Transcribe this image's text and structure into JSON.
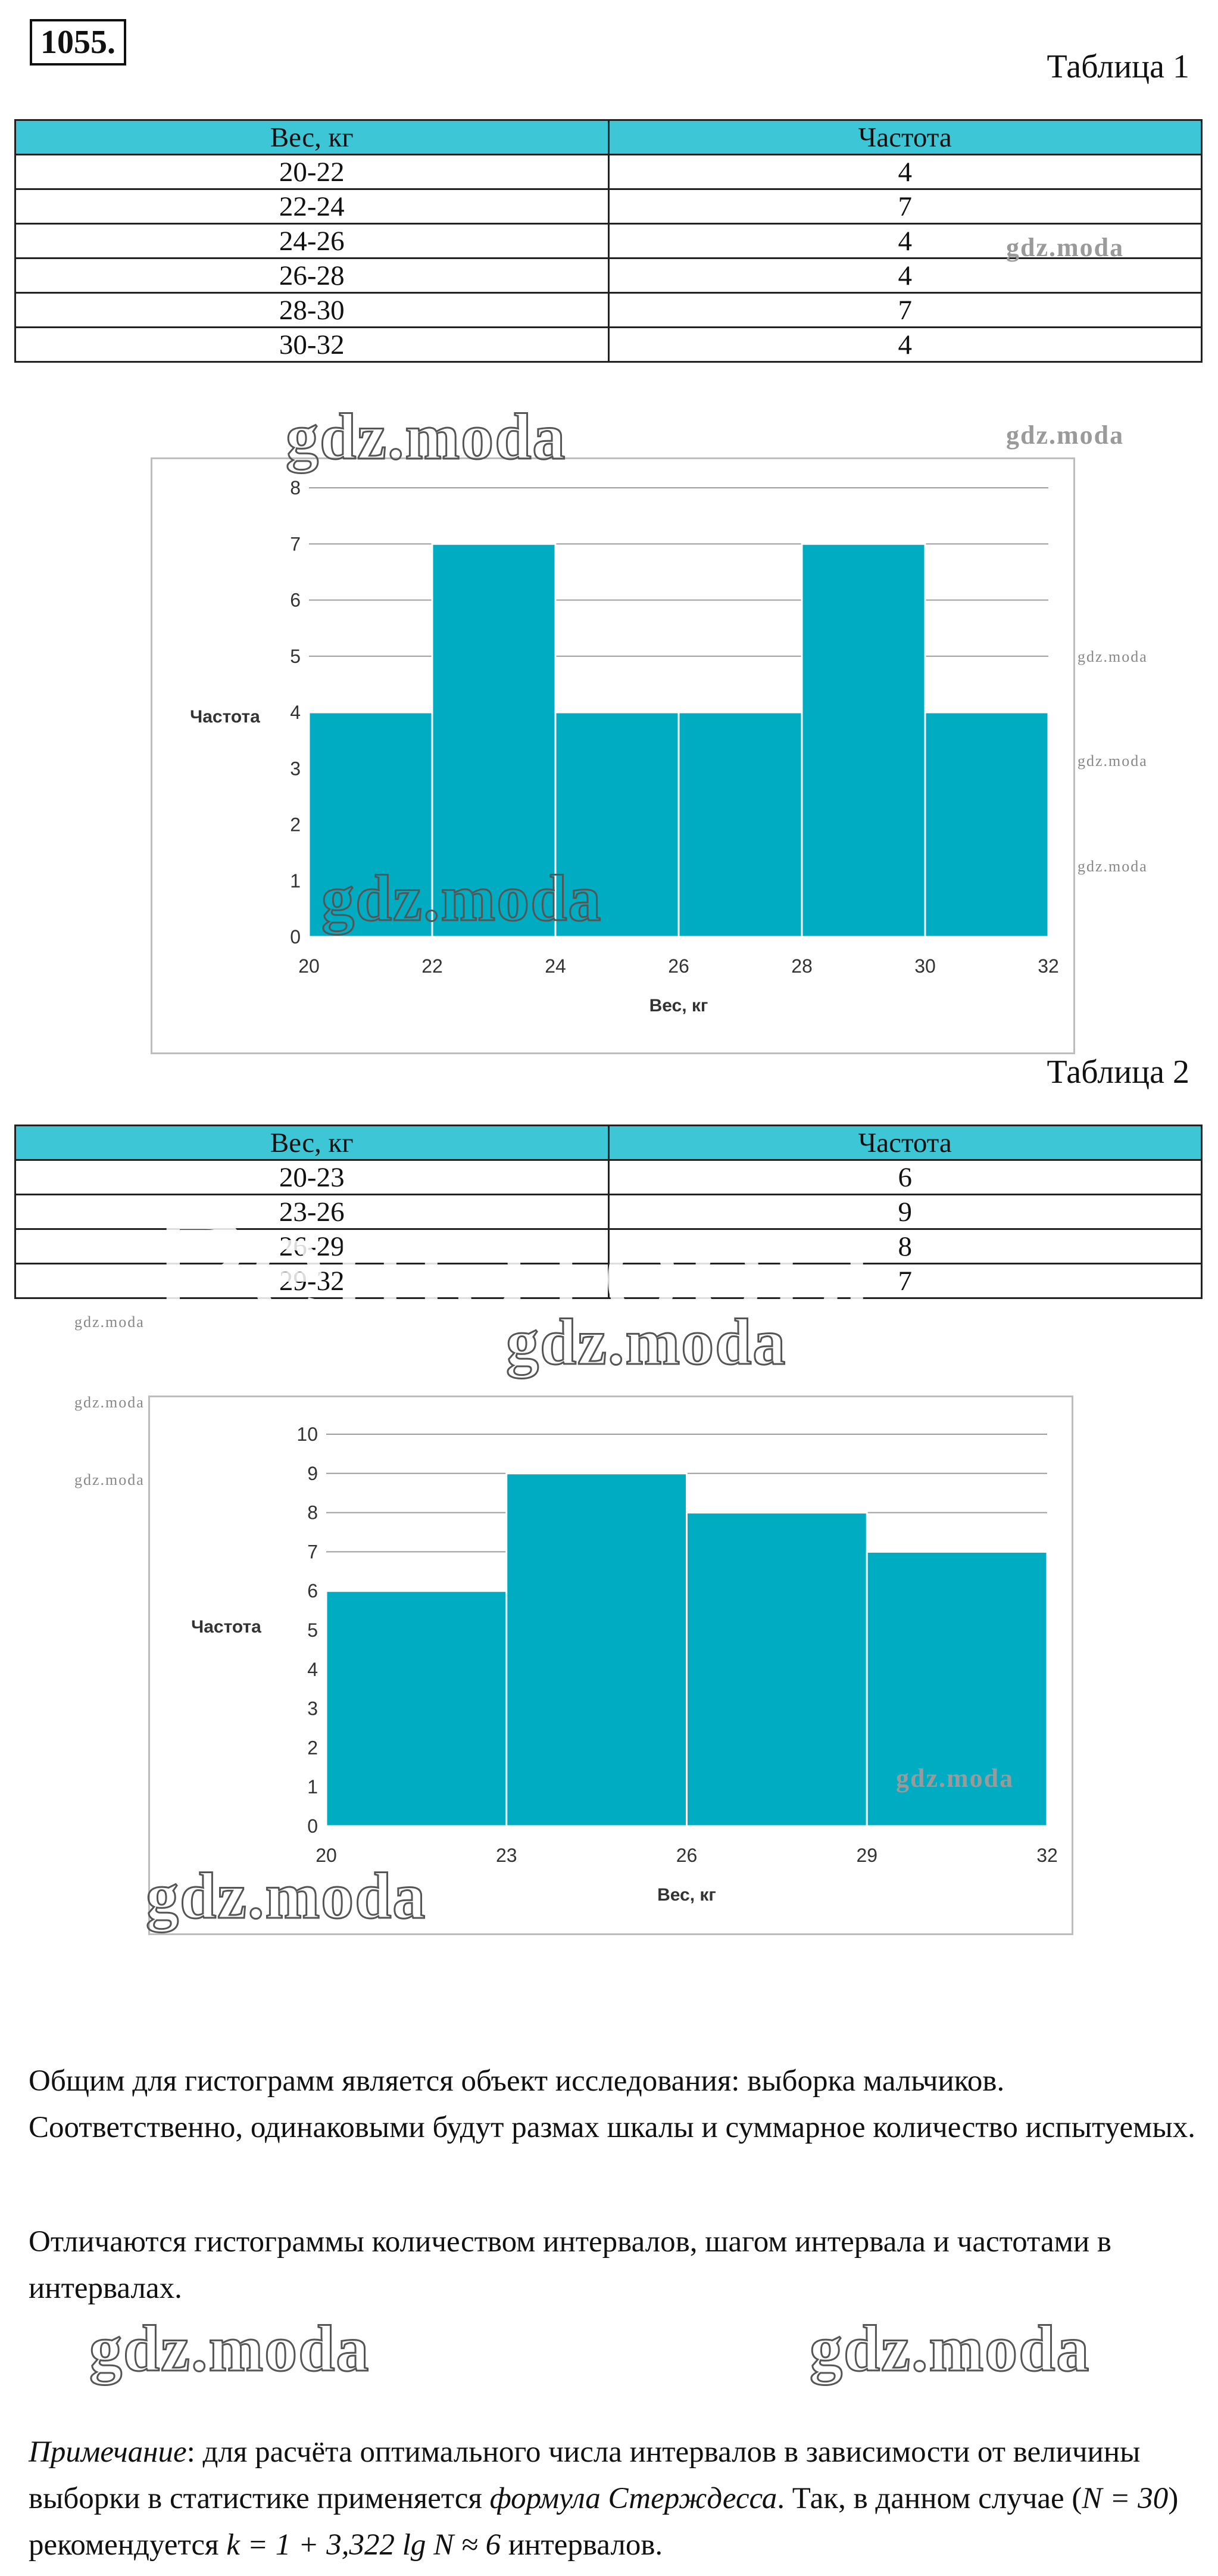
{
  "problem_number": "1055.",
  "table1": {
    "caption": "Таблица 1",
    "headers": [
      "Вес, кг",
      "Частота"
    ],
    "rows": [
      [
        "20-22",
        "4"
      ],
      [
        "22-24",
        "7"
      ],
      [
        "24-26",
        "4"
      ],
      [
        "26-28",
        "4"
      ],
      [
        "28-30",
        "7"
      ],
      [
        "30-32",
        "4"
      ]
    ]
  },
  "table2": {
    "caption": "Таблица 2",
    "headers": [
      "Вес, кг",
      "Частота"
    ],
    "rows": [
      [
        "20-23",
        "6"
      ],
      [
        "23-26",
        "9"
      ],
      [
        "26-29",
        "8"
      ],
      [
        "29-32",
        "7"
      ]
    ]
  },
  "chart_data": [
    {
      "type": "bar",
      "categories": [
        "20-22",
        "22-24",
        "24-26",
        "26-28",
        "28-30",
        "30-32"
      ],
      "bin_edges": [
        20,
        22,
        24,
        26,
        28,
        30,
        32
      ],
      "values": [
        4,
        7,
        4,
        4,
        7,
        4
      ],
      "xlabel": "Вес, кг",
      "ylabel": "Частота",
      "ylim": [
        0,
        8
      ],
      "yticks": [
        0,
        1,
        2,
        3,
        4,
        5,
        6,
        7,
        8
      ],
      "xticks": [
        20,
        22,
        24,
        26,
        28,
        30,
        32
      ],
      "color": "#00acc1",
      "grid": true
    },
    {
      "type": "bar",
      "categories": [
        "20-23",
        "23-26",
        "26-29",
        "29-32"
      ],
      "bin_edges": [
        20,
        23,
        26,
        29,
        32
      ],
      "values": [
        6,
        9,
        8,
        7
      ],
      "xlabel": "Вес, кг",
      "ylabel": "Частота",
      "ylim": [
        0,
        10
      ],
      "yticks": [
        0,
        1,
        2,
        3,
        4,
        5,
        6,
        7,
        8,
        9,
        10
      ],
      "xticks": [
        20,
        23,
        26,
        29,
        32
      ],
      "color": "#00acc1",
      "grid": true
    }
  ],
  "text": {
    "p1": "Общим для гистограмм является объект исследования: выборка мальчиков. Соответственно, одинаковыми будут размах шкалы и суммарное  количество испытуемых.",
    "p2": "Отличаются гистограммы количеством интервалов, шагом интервала и частотами в интервалах.",
    "note_label": "Примечание",
    "note_a": ": для расчёта оптимального числа интервалов в зависимости от величины выборки в статистике применяется ",
    "note_formula_name": "формула Стерждесса",
    "note_b": ". Так, в данном случае (",
    "note_n": "N = 30",
    "note_c": ") рекомендуется ",
    "note_k": "k = 1 + 3,322 lg N ≈ 6",
    "note_d": " интервалов."
  },
  "watermark": "gdz.moda",
  "ghost_text": "Решаторы"
}
